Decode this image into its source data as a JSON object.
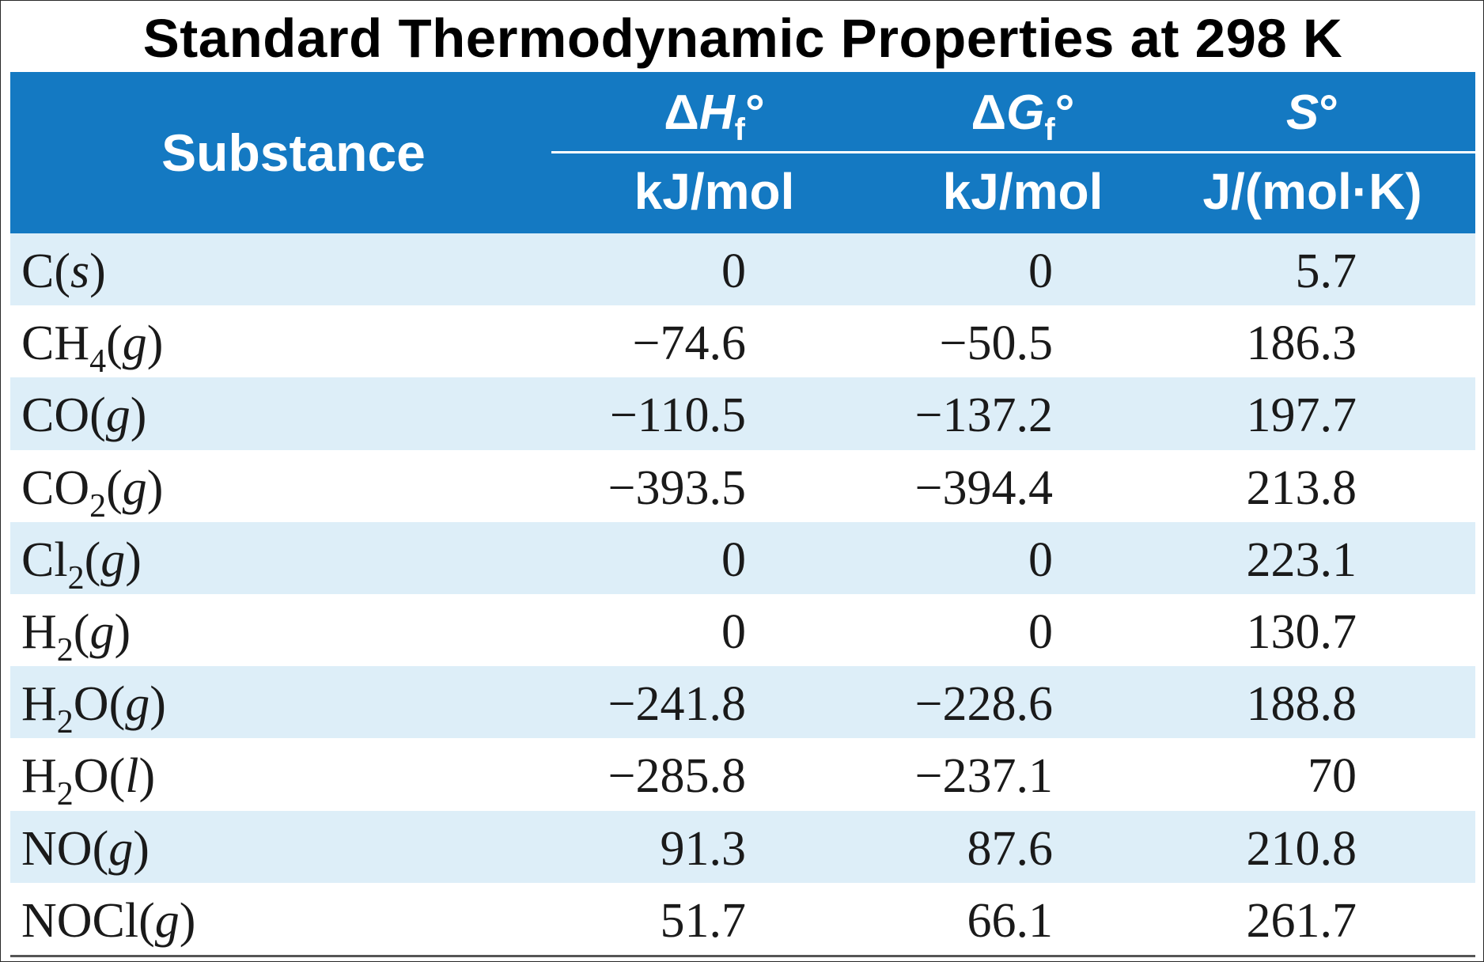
{
  "title": "Standard Thermodynamic Properties at 298 K",
  "colors": {
    "header_bg": "#1479c2",
    "row_shade": "#ddeef8"
  },
  "header": {
    "substance": "Substance",
    "col1": {
      "prefix": "Δ",
      "symbol": "H",
      "subscript": "f",
      "suffix": "°",
      "unit": "kJ/mol"
    },
    "col2": {
      "prefix": "Δ",
      "symbol": "G",
      "subscript": "f",
      "suffix": "°",
      "unit": "kJ/mol"
    },
    "col3": {
      "prefix": "",
      "symbol": "S",
      "subscript": "",
      "suffix": "°",
      "unit": "J/(mol·K)"
    }
  },
  "rows": [
    {
      "formula": [
        {
          "t": "C"
        }
      ],
      "phase": "s",
      "dHf": "0",
      "dGf": "0",
      "S": "5.7"
    },
    {
      "formula": [
        {
          "t": "CH"
        },
        {
          "s": "4"
        }
      ],
      "phase": "g",
      "dHf": "−74.6",
      "dGf": "−50.5",
      "S": "186.3"
    },
    {
      "formula": [
        {
          "t": "CO"
        }
      ],
      "phase": "g",
      "dHf": "−110.5",
      "dGf": "−137.2",
      "S": "197.7"
    },
    {
      "formula": [
        {
          "t": "CO"
        },
        {
          "s": "2"
        }
      ],
      "phase": "g",
      "dHf": "−393.5",
      "dGf": "−394.4",
      "S": "213.8"
    },
    {
      "formula": [
        {
          "t": "Cl"
        },
        {
          "s": "2"
        }
      ],
      "phase": "g",
      "dHf": "0",
      "dGf": "0",
      "S": "223.1"
    },
    {
      "formula": [
        {
          "t": "H"
        },
        {
          "s": "2"
        }
      ],
      "phase": "g",
      "dHf": "0",
      "dGf": "0",
      "S": "130.7"
    },
    {
      "formula": [
        {
          "t": "H"
        },
        {
          "s": "2"
        },
        {
          "t": "O"
        }
      ],
      "phase": "g",
      "dHf": "−241.8",
      "dGf": "−228.6",
      "S": "188.8"
    },
    {
      "formula": [
        {
          "t": "H"
        },
        {
          "s": "2"
        },
        {
          "t": "O"
        }
      ],
      "phase": "l",
      "dHf": "−285.8",
      "dGf": "−237.1",
      "S": "70"
    },
    {
      "formula": [
        {
          "t": "NO"
        }
      ],
      "phase": "g",
      "dHf": "91.3",
      "dGf": "87.6",
      "S": "210.8"
    },
    {
      "formula": [
        {
          "t": "NOCl"
        }
      ],
      "phase": "g",
      "dHf": "51.7",
      "dGf": "66.1",
      "S": "261.7"
    }
  ]
}
